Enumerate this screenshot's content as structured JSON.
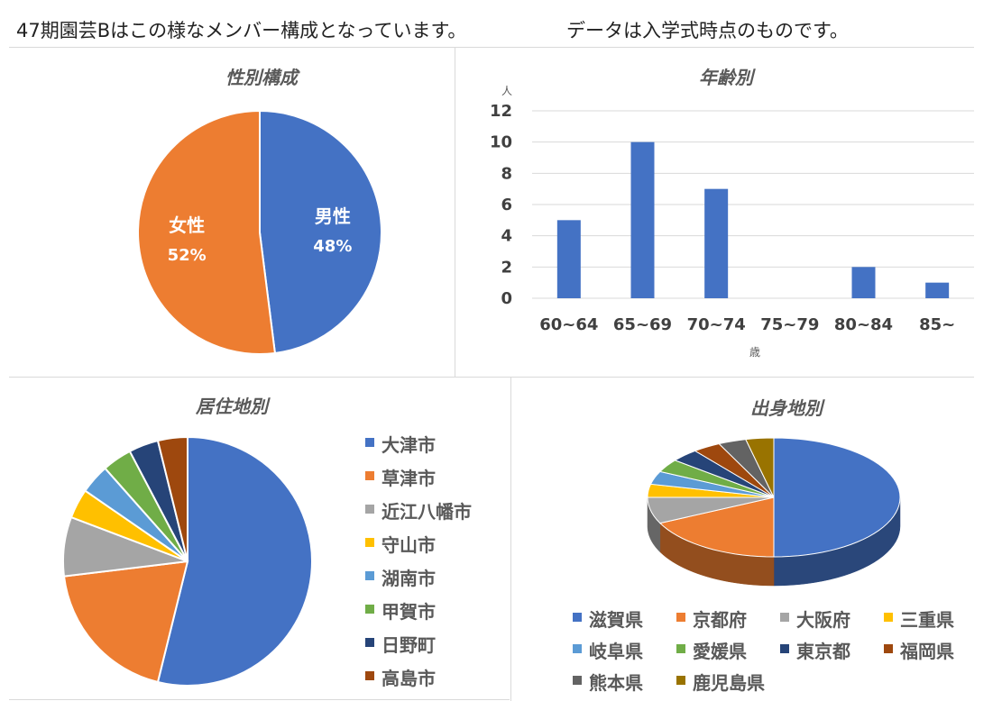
{
  "header": {
    "left_text": "47期園芸Bはこの様なメンバー構成となっています。",
    "right_text": "データは入学式時点のものです。"
  },
  "chart_data": [
    {
      "type": "pie",
      "title": "性別構成",
      "categories": [
        "男性",
        "女性"
      ],
      "values": [
        48,
        52
      ],
      "value_labels": [
        "48%",
        "52%"
      ],
      "colors": [
        "#4472C4",
        "#ED7D31"
      ]
    },
    {
      "type": "bar",
      "title": "年齢別",
      "categories": [
        "60~64",
        "65~69",
        "70~74",
        "75~79",
        "80~84",
        "85~"
      ],
      "values": [
        5,
        10,
        7,
        0,
        2,
        1
      ],
      "xlabel": "歳",
      "ylabel": "人",
      "ylim": [
        0,
        12
      ],
      "yticks": [
        "0",
        "2",
        "4",
        "6",
        "8",
        "10",
        "12"
      ],
      "grid": true,
      "color": "#4472C4"
    },
    {
      "type": "pie",
      "title": "居住地別",
      "categories": [
        "大津市",
        "草津市",
        "近江八幡市",
        "守山市",
        "湖南市",
        "甲賀市",
        "日野町",
        "高島市"
      ],
      "values": [
        14,
        5,
        2,
        1,
        1,
        1,
        1,
        1
      ],
      "colors": [
        "#4472C4",
        "#ED7D31",
        "#A5A5A5",
        "#FFC000",
        "#5B9BD5",
        "#70AD47",
        "#264478",
        "#9E480E"
      ],
      "legend_position": "right"
    },
    {
      "type": "pie",
      "title": "出身地別",
      "subtype": "3d-pie",
      "categories": [
        "滋賀県",
        "京都府",
        "大阪府",
        "三重県",
        "岐阜県",
        "愛媛県",
        "東京都",
        "福岡県",
        "熊本県",
        "鹿児島県"
      ],
      "values": [
        14,
        5,
        2,
        1,
        1,
        1,
        1,
        1,
        1,
        1
      ],
      "colors": [
        "#4472C4",
        "#ED7D31",
        "#A5A5A5",
        "#FFC000",
        "#5B9BD5",
        "#70AD47",
        "#264478",
        "#9E480E",
        "#636363",
        "#997300"
      ],
      "legend_position": "bottom"
    }
  ]
}
